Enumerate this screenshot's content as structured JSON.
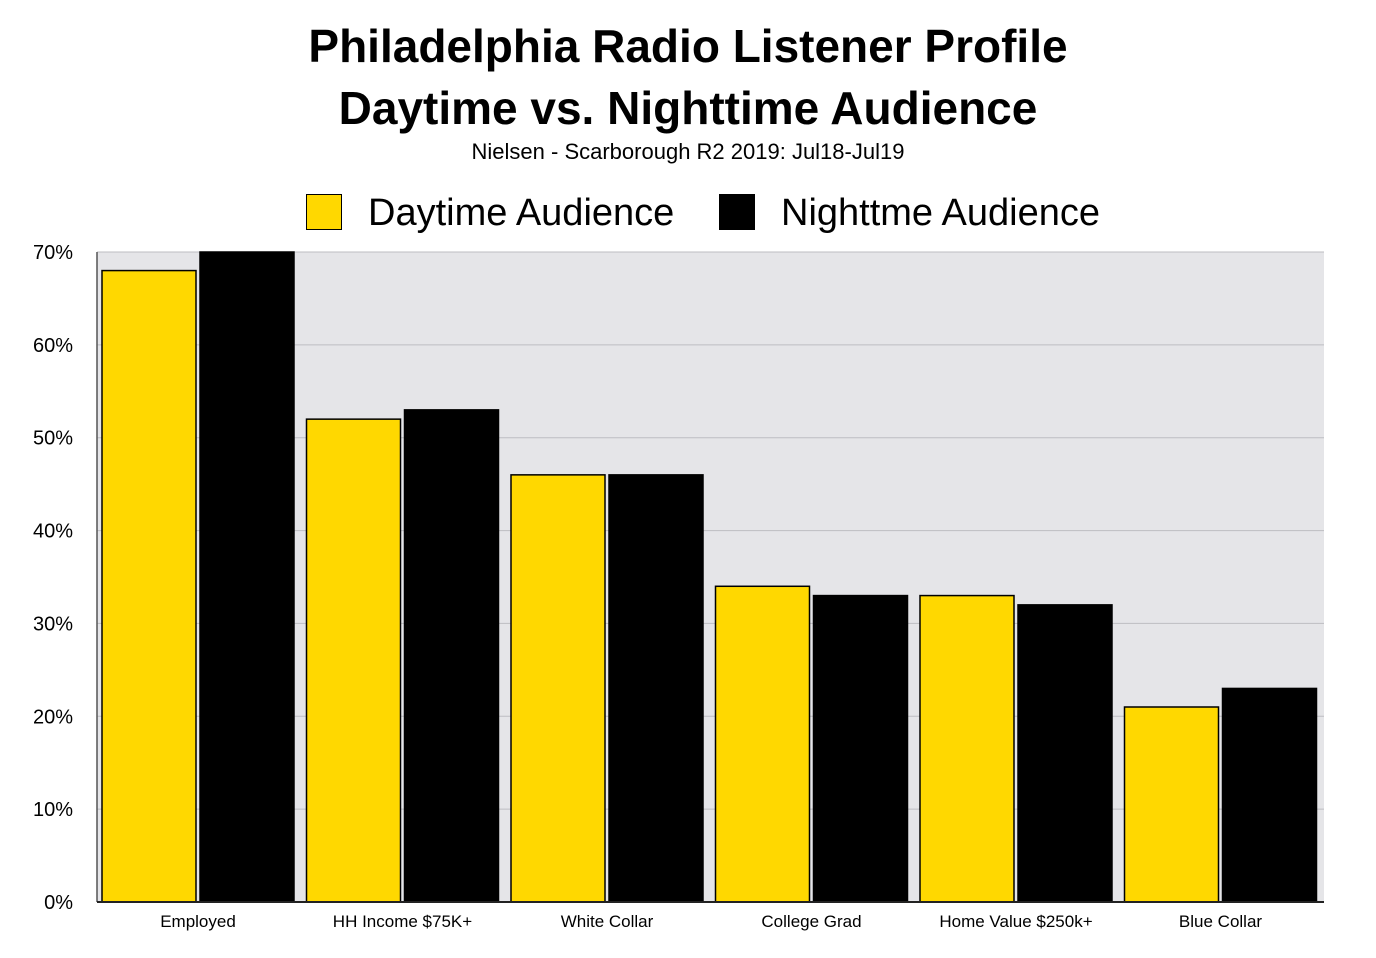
{
  "chart_data": {
    "type": "bar",
    "title": "Philadelphia Radio Listener Profile",
    "title_line2": "Daytime vs. Nighttime Audience",
    "subtitle": "Nielsen - Scarborough R2 2019: Jul18-Jul19",
    "categories": [
      "Employed",
      "HH Income $75K+",
      "White Collar",
      "College Grad",
      "Home Value $250k+",
      "Blue Collar"
    ],
    "series": [
      {
        "name": "Daytime Audience",
        "color": "#FFD800",
        "values": [
          68,
          52,
          46,
          34,
          33,
          21
        ]
      },
      {
        "name": "Nighttme Audience",
        "color": "#000000",
        "values": [
          70,
          53,
          46,
          33,
          32,
          23
        ]
      }
    ],
    "ylim": [
      0,
      70
    ],
    "yticks": [
      0,
      10,
      20,
      30,
      40,
      50,
      60,
      70
    ],
    "ytick_labels": [
      "0%",
      "10%",
      "20%",
      "30%",
      "40%",
      "50%",
      "60%",
      "70%"
    ],
    "xlabel": "",
    "ylabel": "",
    "grid": true,
    "legend_position": "top-center",
    "plot_background": "#E5E5E8"
  }
}
